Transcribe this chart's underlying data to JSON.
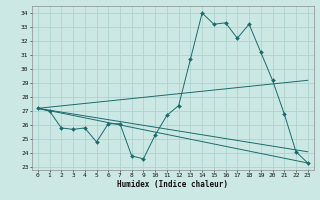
{
  "title": "",
  "xlabel": "Humidex (Indice chaleur)",
  "bg_color": "#cce8e4",
  "line_color": "#1a6b6b",
  "grid_color": "#aacfcc",
  "ylim": [
    22.8,
    34.5
  ],
  "xlim": [
    -0.5,
    23.5
  ],
  "yticks": [
    23,
    24,
    25,
    26,
    27,
    28,
    29,
    30,
    31,
    32,
    33,
    34
  ],
  "xticks": [
    0,
    1,
    2,
    3,
    4,
    5,
    6,
    7,
    8,
    9,
    10,
    11,
    12,
    13,
    14,
    15,
    16,
    17,
    18,
    19,
    20,
    21,
    22,
    23
  ],
  "main_x": [
    0,
    1,
    2,
    3,
    4,
    5,
    6,
    7,
    8,
    9,
    10,
    11,
    12,
    13,
    14,
    15,
    16,
    17,
    18,
    19,
    20,
    21,
    22,
    23
  ],
  "main_y": [
    27.2,
    27.0,
    25.8,
    25.7,
    25.8,
    24.8,
    26.1,
    26.1,
    23.8,
    23.6,
    25.3,
    26.7,
    27.4,
    30.7,
    34.0,
    33.2,
    33.3,
    32.2,
    33.2,
    31.2,
    29.2,
    26.8,
    24.1,
    23.3
  ],
  "trend_lines": [
    {
      "x0": 0,
      "y0": 27.2,
      "x1": 23,
      "y1": 23.3
    },
    {
      "x0": 0,
      "y0": 27.2,
      "x1": 23,
      "y1": 29.2
    },
    {
      "x0": 0,
      "y0": 27.2,
      "x1": 23,
      "y1": 24.1
    }
  ]
}
